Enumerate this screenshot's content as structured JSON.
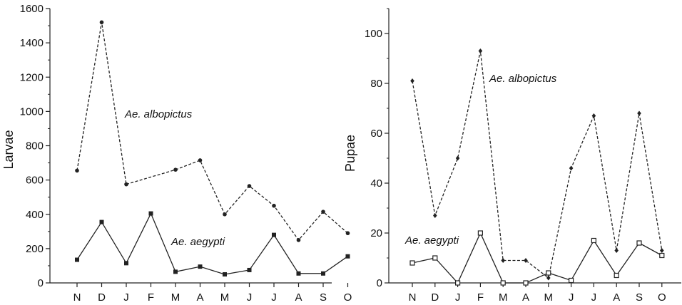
{
  "chart_data": [
    {
      "type": "line",
      "ylabel": "Larvae",
      "xlabel": "",
      "ylim": [
        0,
        1600
      ],
      "yticks": [
        0,
        200,
        400,
        600,
        800,
        1000,
        1200,
        1400,
        1600
      ],
      "categories": [
        "N",
        "D",
        "J",
        "F",
        "M",
        "A",
        "M",
        "J",
        "J",
        "A",
        "S",
        "O"
      ],
      "series": [
        {
          "name": "Ae. albopictus",
          "style": "dashed",
          "color": "#222222",
          "values": [
            655,
            1520,
            575,
            null,
            660,
            715,
            400,
            565,
            450,
            250,
            415,
            290
          ],
          "segments": [
            [
              0,
              2
            ],
            [
              2,
              4
            ],
            [
              4,
              11
            ]
          ]
        },
        {
          "name": "Ae. aegypti",
          "style": "solid",
          "color": "#222222",
          "values": [
            135,
            355,
            115,
            405,
            65,
            95,
            50,
            75,
            280,
            55,
            55,
            155
          ],
          "segments": [
            [
              0,
              11
            ]
          ]
        }
      ]
    },
    {
      "type": "line",
      "ylabel": "Pupae",
      "xlabel": "",
      "ylim": [
        0,
        110
      ],
      "yticks": [
        0,
        20,
        40,
        60,
        80,
        100
      ],
      "categories": [
        "N",
        "D",
        "J",
        "F",
        "M",
        "A",
        "M",
        "J",
        "J",
        "A",
        "S",
        "O"
      ],
      "series": [
        {
          "name": "Ae. albopictus",
          "style": "dashed",
          "color": "#222222",
          "values": [
            81,
            27,
            50,
            93,
            9,
            9,
            2,
            46,
            67,
            13,
            68,
            13
          ],
          "segments": [
            [
              0,
              11
            ]
          ]
        },
        {
          "name": "Ae. aegypti",
          "style": "solid",
          "color": "#222222",
          "values": [
            8,
            10,
            0,
            20,
            0,
            0,
            4,
            1,
            17,
            3,
            16,
            11
          ],
          "segments": [
            [
              0,
              11
            ]
          ]
        }
      ]
    }
  ]
}
